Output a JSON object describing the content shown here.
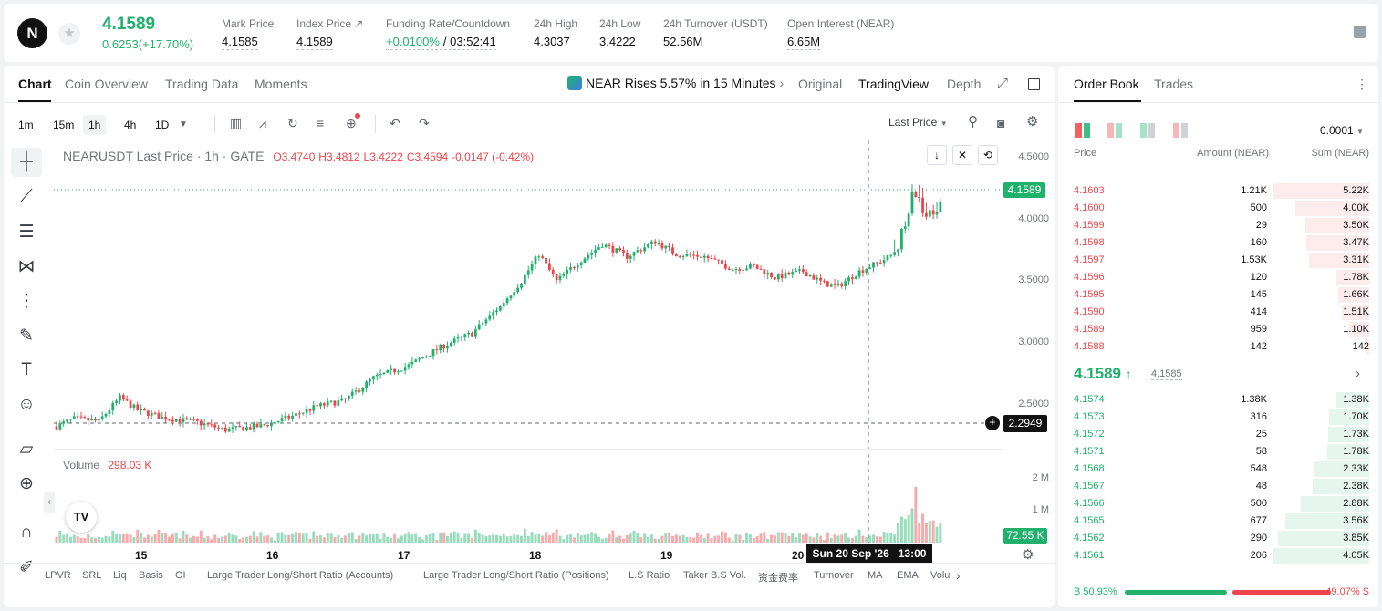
{
  "ticker": {
    "last": "4.1589",
    "change": "0.6253(+17.70%)"
  },
  "stats": [
    {
      "label": "Mark Price",
      "value": "4.1585",
      "underline": true
    },
    {
      "label": "Index Price ↗",
      "value": "4.1589",
      "underline": true
    },
    {
      "label": "Funding Rate/Countdown",
      "rate": "+0.0100%",
      "value": "/ 03:52:41",
      "underline": true
    },
    {
      "label": "24h High",
      "value": "4.3037"
    },
    {
      "label": "24h Low",
      "value": "3.4222"
    },
    {
      "label": "24h Turnover (USDT)",
      "value": "52.56M"
    },
    {
      "label": "Open Interest (NEAR)",
      "value": "6.65M",
      "underline": true
    }
  ],
  "tabs": [
    "Chart",
    "Coin Overview",
    "Trading Data",
    "Moments"
  ],
  "news": "NEAR Rises 5.57% in 15 Minutes",
  "views": [
    "Original",
    "TradingView",
    "Depth"
  ],
  "timeframes": [
    "1m",
    "15m",
    "1h",
    "4h",
    "1D"
  ],
  "price_source": "Last Price",
  "legend": {
    "title": "NEARUSDT Last Price · 1h · GATE",
    "o": "O3.4740",
    "h": "H3.4812",
    "l": "L3.4222",
    "c": "C3.4594",
    "chg": "-0.0147 (-0.42%)"
  },
  "yaxis": [
    "4.5000",
    "4.0000",
    "3.5000",
    "3.0000",
    "2.5000"
  ],
  "current_price_tag": "4.1589",
  "crosshair_price": "2.2949",
  "crosshair_time": "Sun 20 Sep '26   13:00",
  "volume": {
    "label": "Volume",
    "value": "298.03 K",
    "axis": [
      "2 M",
      "1 M"
    ],
    "tag": "72.55 K"
  },
  "xaxis": [
    "15",
    "16",
    "17",
    "18",
    "19",
    "20"
  ],
  "indicators": [
    "LPVR",
    "SRL",
    "Liq",
    "Basis",
    "OI",
    "Large Trader Long/Short Ratio (Accounts)",
    "Large Trader Long/Short Ratio (Positions)",
    "L.S Ratio",
    "Taker B.S Vol.",
    "资金费率",
    "Turnover",
    "MA",
    "EMA",
    "Volu"
  ],
  "chart_data": {
    "type": "candlestick",
    "title": "NEARUSDT Last Price · 1h · GATE",
    "ylim": [
      2.2,
      4.6
    ],
    "anchors": [
      [
        0,
        2.33
      ],
      [
        5,
        2.39
      ],
      [
        12,
        2.37
      ],
      [
        18,
        2.56
      ],
      [
        23,
        2.46
      ],
      [
        30,
        2.4
      ],
      [
        40,
        2.36
      ],
      [
        48,
        2.3
      ],
      [
        58,
        2.33
      ],
      [
        66,
        2.4
      ],
      [
        74,
        2.49
      ],
      [
        82,
        2.54
      ],
      [
        90,
        2.72
      ],
      [
        100,
        2.82
      ],
      [
        110,
        2.98
      ],
      [
        118,
        3.08
      ],
      [
        126,
        3.3
      ],
      [
        132,
        3.5
      ],
      [
        137,
        3.72
      ],
      [
        142,
        3.5
      ],
      [
        148,
        3.65
      ],
      [
        155,
        3.8
      ],
      [
        162,
        3.7
      ],
      [
        170,
        3.82
      ],
      [
        176,
        3.72
      ],
      [
        184,
        3.7
      ],
      [
        192,
        3.6
      ],
      [
        198,
        3.62
      ],
      [
        204,
        3.53
      ],
      [
        212,
        3.58
      ],
      [
        218,
        3.48
      ],
      [
        222,
        3.46
      ],
      [
        228,
        3.58
      ],
      [
        234,
        3.66
      ],
      [
        238,
        3.72
      ],
      [
        241,
        3.95
      ],
      [
        243,
        4.28
      ],
      [
        245,
        4.15
      ],
      [
        247,
        4.0
      ],
      [
        251,
        4.16
      ]
    ],
    "volume_axis": [
      "1 M",
      "2 M"
    ]
  },
  "orderbook": {
    "tabs": [
      "Order Book",
      "Trades"
    ],
    "precision": "0.0001",
    "headers": [
      "Price",
      "Amount (NEAR)",
      "Sum (NEAR)"
    ],
    "asks": [
      [
        "4.1603",
        "1.21K",
        "5.22K",
        1.0
      ],
      [
        "4.1600",
        "500",
        "4.00K",
        0.77
      ],
      [
        "4.1599",
        "29",
        "3.50K",
        0.67
      ],
      [
        "4.1598",
        "160",
        "3.47K",
        0.66
      ],
      [
        "4.1597",
        "1.53K",
        "3.31K",
        0.63
      ],
      [
        "4.1596",
        "120",
        "1.78K",
        0.34
      ],
      [
        "4.1595",
        "145",
        "1.66K",
        0.32
      ],
      [
        "4.1590",
        "414",
        "1.51K",
        0.29
      ],
      [
        "4.1589",
        "959",
        "1.10K",
        0.21
      ],
      [
        "4.1588",
        "142",
        "142",
        0.03
      ]
    ],
    "mid": {
      "price": "4.1589",
      "mark": "4.1585"
    },
    "bids": [
      [
        "4.1574",
        "1.38K",
        "1.38K",
        0.34
      ],
      [
        "4.1573",
        "316",
        "1.70K",
        0.42
      ],
      [
        "4.1572",
        "25",
        "1.73K",
        0.43
      ],
      [
        "4.1571",
        "58",
        "1.78K",
        0.44
      ],
      [
        "4.1568",
        "548",
        "2.33K",
        0.58
      ],
      [
        "4.1567",
        "48",
        "2.38K",
        0.59
      ],
      [
        "4.1566",
        "500",
        "2.88K",
        0.71
      ],
      [
        "4.1565",
        "677",
        "3.56K",
        0.88
      ],
      [
        "4.1562",
        "290",
        "3.85K",
        0.95
      ],
      [
        "4.1561",
        "206",
        "4.05K",
        1.0
      ]
    ],
    "buy": "B 50.93%",
    "sell": "49.07% S",
    "buy_ratio": 0.5093
  },
  "colors": {
    "up": "#20b26c",
    "down": "#ef454a"
  }
}
